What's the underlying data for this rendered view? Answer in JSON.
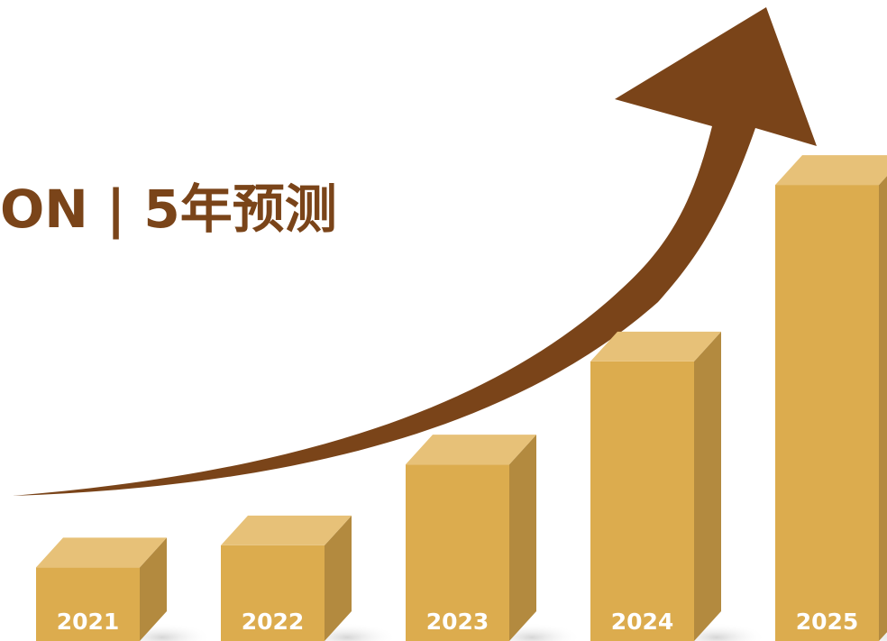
{
  "colors": {
    "front": "#dcac4e",
    "top": "#e7c178",
    "side": "#b38a3f",
    "arrow": "#7a4419",
    "title": "#7a4419",
    "label": "#ffffff",
    "shadow": "#d8d8d8"
  },
  "chart_data": {
    "type": "bar",
    "title": "ON | 5年预测",
    "xlabel": "",
    "ylabel": "",
    "categories": [
      "2021",
      "2022",
      "2023",
      "2024",
      "2025"
    ],
    "values": [
      1.0,
      1.3,
      2.4,
      3.8,
      6.2
    ],
    "grid": false,
    "legend": "none",
    "trend_arrow": true
  }
}
